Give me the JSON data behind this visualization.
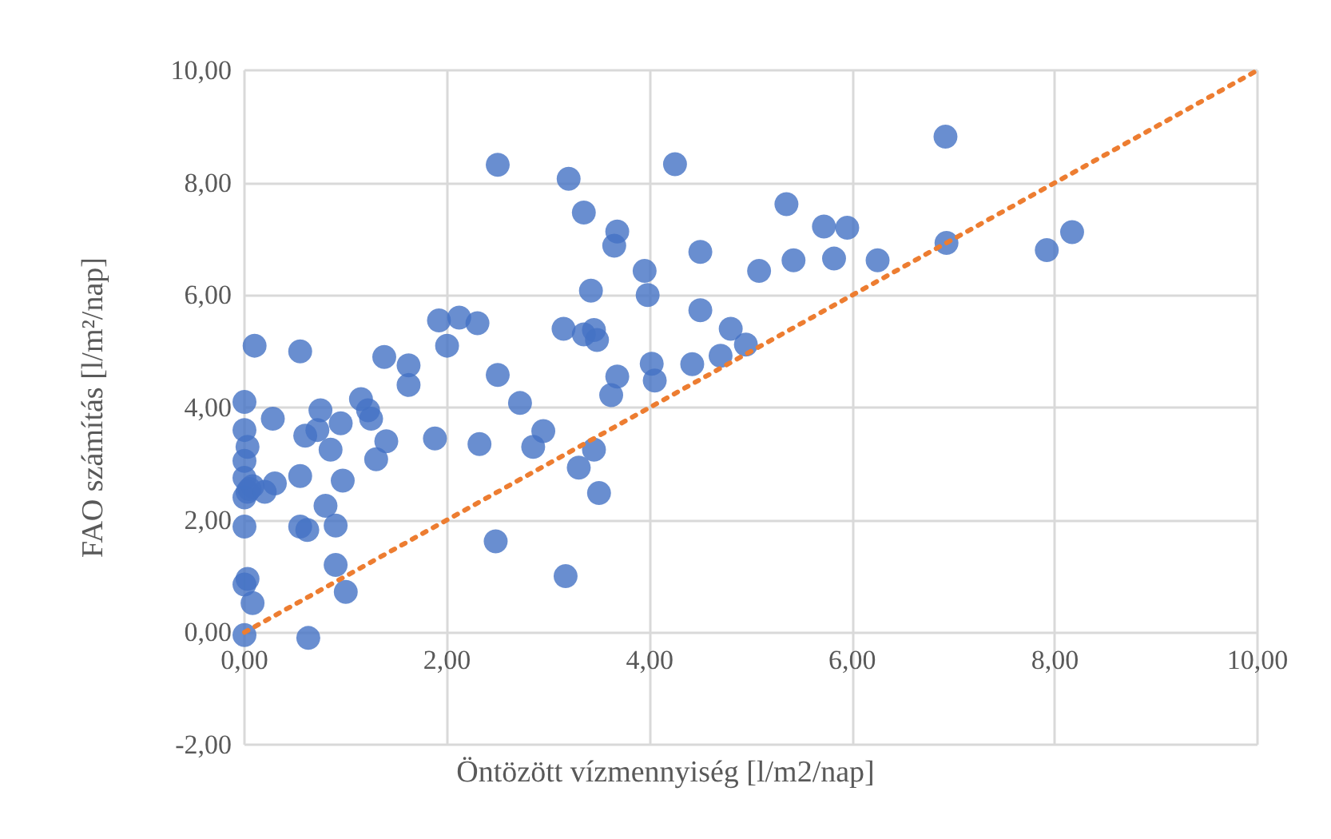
{
  "chart_data": {
    "type": "scatter",
    "xlabel": "Öntözött vízmennyiség [l/m2/nap]",
    "ylabel": "FAO számítás [l/m²/nap]",
    "xlim": [
      0,
      10
    ],
    "ylim": [
      -2,
      10
    ],
    "xticks": [
      {
        "value": 0,
        "label": "0,00"
      },
      {
        "value": 2,
        "label": "2,00"
      },
      {
        "value": 4,
        "label": "4,00"
      },
      {
        "value": 6,
        "label": "6,00"
      },
      {
        "value": 8,
        "label": "8,00"
      },
      {
        "value": 10,
        "label": "10,00"
      }
    ],
    "yticks": [
      {
        "value": -2,
        "label": "-2,00"
      },
      {
        "value": 0,
        "label": "0,00"
      },
      {
        "value": 2,
        "label": "2,00"
      },
      {
        "value": 4,
        "label": "4,00"
      },
      {
        "value": 6,
        "label": "6,00"
      },
      {
        "value": 8,
        "label": "8,00"
      },
      {
        "value": 10,
        "label": "10,00"
      }
    ],
    "grid": true,
    "marker": "circle",
    "series": [
      {
        "color": "#4472c4",
        "x": [
          0,
          0.63,
          0,
          0.03,
          0.08,
          1.0,
          0.9,
          0,
          0.55,
          0.62,
          0.8,
          0,
          0.03,
          0.08,
          0.2,
          0.3,
          0.55,
          0,
          0,
          0.03,
          0,
          0,
          0.28,
          0.1,
          0.55,
          0.6,
          0.72,
          0.75,
          0.85,
          0.95,
          0.97,
          0.9,
          1.15,
          1.22,
          1.25,
          1.3,
          1.38,
          1.4,
          1.62,
          1.62,
          1.88,
          1.92,
          2.0,
          2.12,
          2.3,
          2.32,
          2.5,
          2.48,
          2.5,
          2.72,
          2.85,
          2.95,
          3.15,
          3.17,
          3.2,
          3.3,
          3.35,
          3.35,
          3.42,
          3.45,
          3.45,
          3.48,
          3.5,
          3.62,
          3.65,
          3.68,
          3.68,
          3.95,
          3.98,
          4.02,
          4.05,
          4.25,
          4.42,
          4.5,
          4.5,
          4.7,
          4.8,
          4.95,
          5.08,
          5.35,
          5.42,
          5.72,
          5.82,
          5.95,
          6.25,
          6.93,
          6.92,
          7.92,
          8.17,
          0.05
        ],
        "values": [
          -0.05,
          -0.1,
          0.85,
          0.95,
          0.52,
          0.72,
          1.2,
          1.88,
          1.88,
          1.82,
          2.25,
          2.4,
          2.5,
          2.6,
          2.5,
          2.65,
          2.78,
          2.75,
          3.05,
          3.3,
          3.6,
          4.1,
          3.8,
          5.1,
          5.0,
          3.5,
          3.6,
          3.95,
          3.25,
          3.72,
          2.7,
          1.9,
          4.15,
          3.95,
          3.8,
          3.08,
          4.9,
          3.4,
          4.75,
          4.4,
          3.45,
          5.55,
          5.1,
          5.6,
          5.5,
          3.35,
          4.58,
          1.62,
          8.32,
          4.08,
          3.3,
          3.58,
          5.4,
          1.0,
          8.07,
          2.93,
          7.47,
          5.3,
          6.08,
          5.38,
          3.25,
          5.2,
          2.48,
          4.22,
          6.88,
          7.13,
          4.55,
          6.43,
          6.0,
          4.78,
          4.48,
          8.33,
          4.77,
          5.73,
          6.77,
          4.92,
          5.4,
          5.12,
          6.43,
          7.62,
          6.62,
          7.22,
          6.65,
          7.2,
          6.62,
          6.93,
          8.82,
          6.8,
          7.12,
          2.55
        ]
      },
      {
        "type": "line",
        "color": "#ed7d31",
        "line_style": "dotted",
        "marker": "none",
        "x": [
          0,
          10
        ],
        "values": [
          0,
          10
        ]
      }
    ]
  }
}
